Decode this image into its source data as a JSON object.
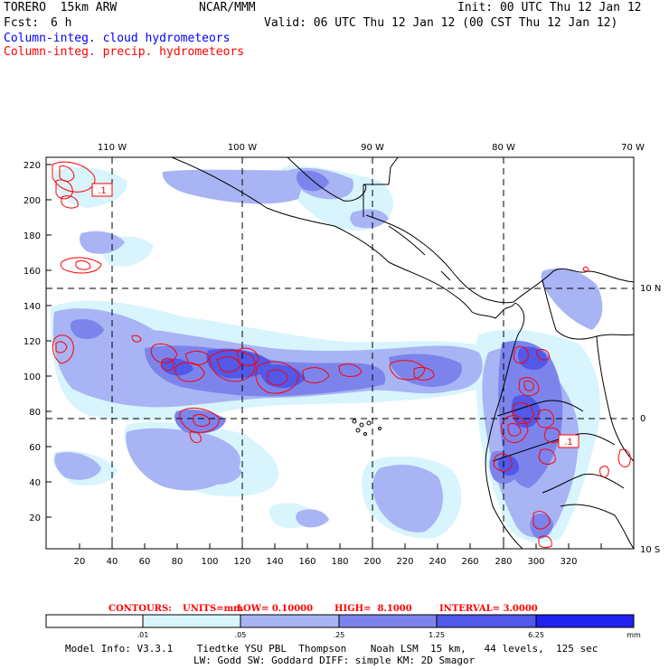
{
  "header": {
    "model": "TORERO  15km ARW",
    "org": "NCAR/MMM",
    "init": "Init: 00 UTC Thu 12 Jan 12",
    "fcst_label": "Fcst:",
    "fcst_value": "6 h",
    "valid": "Valid: 06 UTC Thu 12 Jan 12 (00 CST Thu 12 Jan 12)",
    "field1": "Column-integ. cloud hydrometeors",
    "field2": "Column-integ. precip. hydrometeors"
  },
  "colors": {
    "cloud_field": "#0000ff",
    "precip_field": "#ff0000",
    "bin1": "#ffffff",
    "bin2": "#d8f4fc",
    "bin3": "#a8b4f4",
    "bin4": "#7c84ec",
    "bin5": "#5258e8",
    "bin6": "#2020f0"
  },
  "map": {
    "lon_labels": [
      "110 W",
      "100 W",
      "90 W",
      "80 W",
      "70 W"
    ],
    "lat_labels": [
      "10 N",
      "0",
      "10 S"
    ],
    "x_ticks": [
      "20",
      "40",
      "60",
      "80",
      "100",
      "120",
      "140",
      "160",
      "180",
      "200",
      "220",
      "240",
      "260",
      "280",
      "300",
      "320"
    ],
    "y_ticks": [
      "220",
      "200",
      "180",
      "160",
      "140",
      "120",
      "100",
      "80",
      "60",
      "40",
      "20"
    ],
    "box_label_1": ".1",
    "box_label_2": ".1"
  },
  "contours": {
    "label": "CONTOURS:",
    "units": "UNITS=mm",
    "low": "LOW= 0.10000",
    "high": "HIGH=  8.1000",
    "interval": "INTERVAL= 3.0000"
  },
  "colorbar": {
    "ticks": [
      ".01",
      ".05",
      ".25",
      "1.25",
      "6.25"
    ],
    "unit": "mm"
  },
  "footer": {
    "line1": "Model Info: V3.3.1    Tiedtke YSU PBL  Thompson    Noah LSM  15 km,   44 levels,  125 sec",
    "line2": "LW: Godd SW: Goddard DIFF: simple KM: 2D Smagor"
  }
}
